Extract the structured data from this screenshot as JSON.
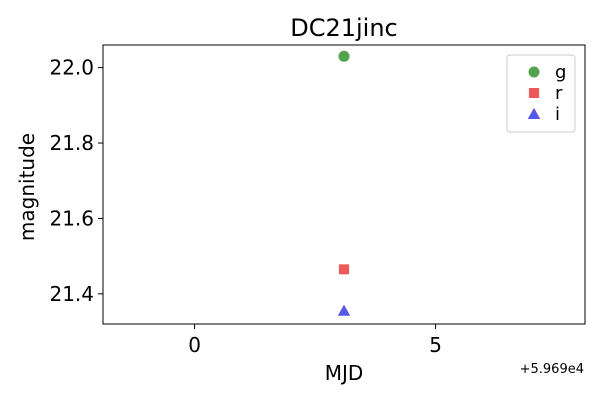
{
  "chart_data": {
    "type": "scatter",
    "title": "DC21jinc",
    "xlabel": "MJD",
    "ylabel": "magnitude",
    "x_offset_label": "+5.969e4",
    "xlim": [
      -1.9,
      8.1
    ],
    "ylim": [
      22.06,
      21.32
    ],
    "y_inverted": true,
    "xticks": [
      0,
      5
    ],
    "xtick_labels": [
      "0",
      "5"
    ],
    "yticks": [
      21.4,
      21.6,
      21.8,
      22.0
    ],
    "ytick_labels": [
      "21.4",
      "21.6",
      "21.8",
      "22.0"
    ],
    "grid": false,
    "legend_position": "top-right",
    "series": [
      {
        "name": "g",
        "marker": "circle",
        "color": "#4a9e44",
        "points": [
          {
            "x": 3.1,
            "y": 22.03
          }
        ]
      },
      {
        "name": "r",
        "marker": "square",
        "color": "#f24d4d",
        "points": [
          {
            "x": 3.1,
            "y": 21.465
          }
        ]
      },
      {
        "name": "i",
        "marker": "triangle",
        "color": "#4c4cf0",
        "points": [
          {
            "x": 3.1,
            "y": 21.355
          }
        ]
      }
    ]
  }
}
